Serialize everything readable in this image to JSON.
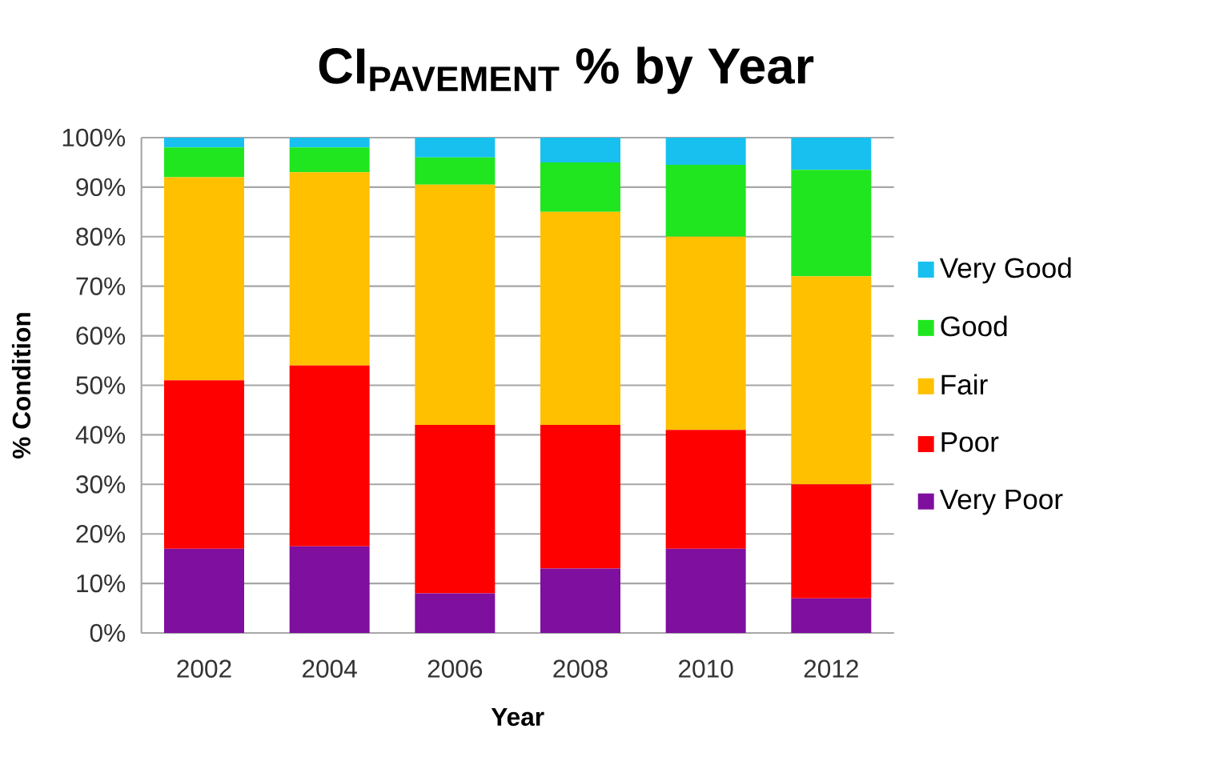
{
  "chart_data": {
    "type": "bar",
    "stacked": true,
    "title": "CI$_{PAVEMENT}$ % by Year",
    "xlabel": "Year",
    "ylabel": "% Condition",
    "categories": [
      "2002",
      "2004",
      "2006",
      "2008",
      "2010",
      "2012"
    ],
    "series": [
      {
        "name": "Very Poor",
        "color": "#7f0f9f",
        "values": [
          17,
          17.5,
          8,
          13,
          17,
          7
        ]
      },
      {
        "name": "Poor",
        "color": "#ff0000",
        "values": [
          34,
          36.5,
          34,
          29,
          24,
          23
        ]
      },
      {
        "name": "Fair",
        "color": "#ffc000",
        "values": [
          41,
          39,
          48.5,
          43,
          39,
          42
        ]
      },
      {
        "name": "Good",
        "color": "#1fe61f",
        "values": [
          6,
          5,
          5.5,
          10,
          14.5,
          21.5
        ]
      },
      {
        "name": "Very Good",
        "color": "#17c0ef",
        "values": [
          2,
          2,
          4,
          5,
          5.5,
          6.5
        ]
      }
    ],
    "ylim": [
      0,
      100
    ],
    "yticks": [
      {
        "value": 0,
        "label": "0%"
      },
      {
        "value": 10,
        "label": "10%"
      },
      {
        "value": 20,
        "label": "20%"
      },
      {
        "value": 30,
        "label": "30%"
      },
      {
        "value": 40,
        "label": "40%"
      },
      {
        "value": 50,
        "label": "50%"
      },
      {
        "value": 60,
        "label": "60%"
      },
      {
        "value": 70,
        "label": "70%"
      },
      {
        "value": 80,
        "label": "80%"
      },
      {
        "value": 90,
        "label": "90%"
      },
      {
        "value": 100,
        "label": "100%"
      }
    ],
    "grid": "y",
    "legend": "right"
  }
}
